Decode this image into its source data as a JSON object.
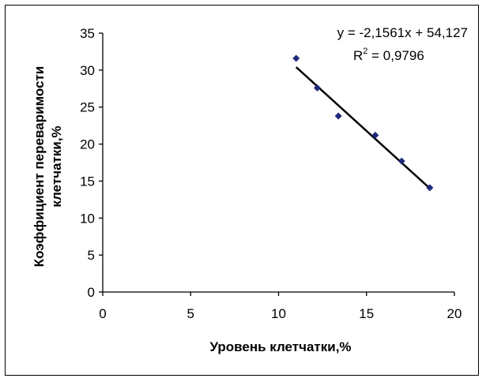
{
  "chart_data": {
    "type": "scatter",
    "xlabel": "Уровень клетчатки,%",
    "ylabel_line1": "Коэффициент переваримости",
    "ylabel_line2": "клетчатки,%",
    "xlim": [
      0,
      20
    ],
    "ylim": [
      0,
      35
    ],
    "x_ticks": [
      0,
      5,
      10,
      15,
      20
    ],
    "y_ticks": [
      0,
      5,
      10,
      15,
      20,
      25,
      30,
      35
    ],
    "points": [
      {
        "x": 11.0,
        "y": 31.6
      },
      {
        "x": 12.2,
        "y": 27.6
      },
      {
        "x": 13.4,
        "y": 23.8
      },
      {
        "x": 15.5,
        "y": 21.2
      },
      {
        "x": 17.0,
        "y": 17.7
      },
      {
        "x": 18.6,
        "y": 14.1
      }
    ],
    "trendline": {
      "slope": -2.1561,
      "intercept": 54.127,
      "x_range": [
        11.0,
        18.6
      ],
      "equation_label": "y = -2,1561x + 54,127",
      "r2_prefix": "R",
      "r2_exp": "2",
      "r2_value": " = 0,9796"
    },
    "marker_color": "#1f2a7a",
    "line_color": "#000000",
    "grid": false,
    "legend": false
  }
}
